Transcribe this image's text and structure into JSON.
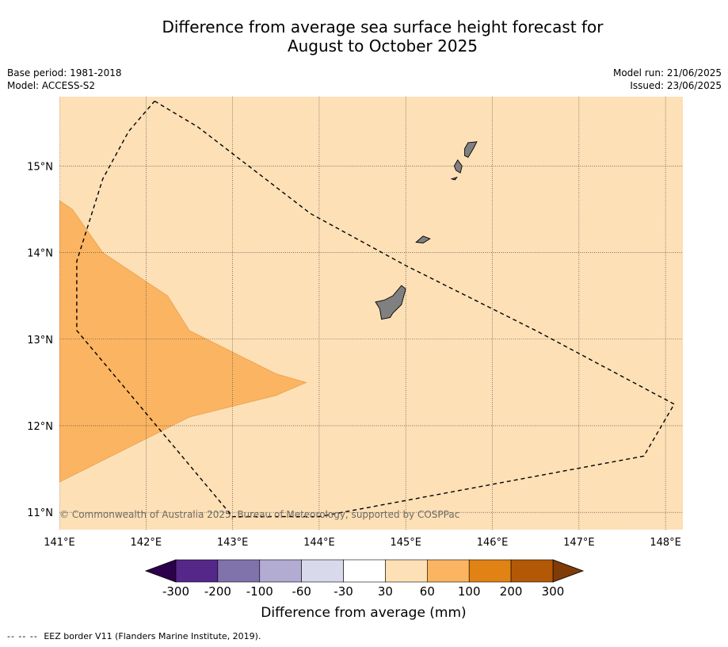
{
  "title": {
    "line1": "Difference from average sea surface height forecast for",
    "line2": "August to October 2025"
  },
  "meta": {
    "base_period": "Base period: 1981-2018",
    "model": "Model: ACCESS-S2",
    "model_run": "Model run: 21/06/2025",
    "issued": "Issued: 23/06/2025"
  },
  "map": {
    "lon_range": [
      141,
      148.2
    ],
    "lat_range": [
      10.8,
      15.8
    ],
    "lon_ticks": [
      {
        "value": 141,
        "label": "141°E"
      },
      {
        "value": 142,
        "label": "142°E"
      },
      {
        "value": 143,
        "label": "143°E"
      },
      {
        "value": 144,
        "label": "144°E"
      },
      {
        "value": 145,
        "label": "145°E"
      },
      {
        "value": 146,
        "label": "146°E"
      },
      {
        "value": 147,
        "label": "147°E"
      },
      {
        "value": 148,
        "label": "148°E"
      }
    ],
    "lat_ticks": [
      {
        "value": 11,
        "label": "11°N"
      },
      {
        "value": 12,
        "label": "12°N"
      },
      {
        "value": 13,
        "label": "13°N"
      },
      {
        "value": 14,
        "label": "14°N"
      },
      {
        "value": 15,
        "label": "15°N"
      }
    ],
    "background_category": "30 to 60",
    "background_color": "#fde0b6",
    "anomaly_region": {
      "category": "60 to 100",
      "color": "#fbb461",
      "outline": [
        [
          141,
          14.6
        ],
        [
          141.15,
          14.5
        ],
        [
          141.5,
          14.0
        ],
        [
          142.25,
          13.5
        ],
        [
          142.5,
          13.1
        ],
        [
          143.5,
          12.6
        ],
        [
          143.85,
          12.5
        ],
        [
          143.5,
          12.35
        ],
        [
          142.5,
          12.1
        ],
        [
          141.5,
          11.6
        ],
        [
          141.3,
          11.5
        ],
        [
          141,
          11.35
        ]
      ]
    },
    "eez_border": [
      [
        142.1,
        15.75
      ],
      [
        142.6,
        15.45
      ],
      [
        143.9,
        14.45
      ],
      [
        145.0,
        13.85
      ],
      [
        146.5,
        13.1
      ],
      [
        148.1,
        12.25
      ],
      [
        147.75,
        11.65
      ],
      [
        144.0,
        10.95
      ],
      [
        143.0,
        10.95
      ],
      [
        141.2,
        13.1
      ],
      [
        141.2,
        13.9
      ],
      [
        141.5,
        14.85
      ],
      [
        141.8,
        15.4
      ],
      [
        142.1,
        15.75
      ]
    ],
    "land_color": "#808080",
    "islands": [
      {
        "name": "Guam",
        "outline": [
          [
            144.95,
            13.62
          ],
          [
            145.0,
            13.58
          ],
          [
            144.95,
            13.4
          ],
          [
            144.85,
            13.3
          ],
          [
            144.82,
            13.25
          ],
          [
            144.72,
            13.23
          ],
          [
            144.7,
            13.35
          ],
          [
            144.65,
            13.43
          ],
          [
            144.75,
            13.45
          ],
          [
            144.85,
            13.5
          ]
        ]
      },
      {
        "name": "Rota",
        "outline": [
          [
            145.12,
            14.12
          ],
          [
            145.2,
            14.19
          ],
          [
            145.28,
            14.16
          ],
          [
            145.2,
            14.11
          ]
        ]
      },
      {
        "name": "Tinian",
        "outline": [
          [
            145.6,
            15.07
          ],
          [
            145.65,
            15.0
          ],
          [
            145.63,
            14.92
          ],
          [
            145.58,
            14.95
          ],
          [
            145.56,
            15.0
          ]
        ]
      },
      {
        "name": "Saipan",
        "outline": [
          [
            145.72,
            15.27
          ],
          [
            145.82,
            15.28
          ],
          [
            145.78,
            15.2
          ],
          [
            145.72,
            15.1
          ],
          [
            145.68,
            15.12
          ],
          [
            145.68,
            15.2
          ]
        ]
      },
      {
        "name": "Aguijan",
        "outline": [
          [
            145.53,
            14.85
          ],
          [
            145.59,
            14.87
          ],
          [
            145.57,
            14.84
          ]
        ]
      }
    ],
    "copyright": "© Commonwealth of Australia 2025, Bureau of Meteorology, supported by COSPPac"
  },
  "colorbar": {
    "below_color": "#2d004b",
    "above_color": "#7f3b08",
    "segments": [
      {
        "from": -300,
        "to": -200,
        "color": "#542788"
      },
      {
        "from": -200,
        "to": -100,
        "color": "#8073ac"
      },
      {
        "from": -100,
        "to": -60,
        "color": "#b2abd2"
      },
      {
        "from": -60,
        "to": -30,
        "color": "#d8daeb"
      },
      {
        "from": -30,
        "to": 30,
        "color": "#ffffff"
      },
      {
        "from": 30,
        "to": 60,
        "color": "#fde0b6"
      },
      {
        "from": 60,
        "to": 100,
        "color": "#fbb461"
      },
      {
        "from": 100,
        "to": 200,
        "color": "#e08214"
      },
      {
        "from": 200,
        "to": 300,
        "color": "#b35806"
      }
    ],
    "tick_labels": [
      "-300",
      "-200",
      "-100",
      "-60",
      "-30",
      "30",
      "60",
      "100",
      "200",
      "300"
    ],
    "label": "Difference from average (mm)"
  },
  "footer": {
    "dash_symbol": "-- -- --",
    "text": "EEZ border V11 (Flanders Marine Institute, 2019)."
  }
}
